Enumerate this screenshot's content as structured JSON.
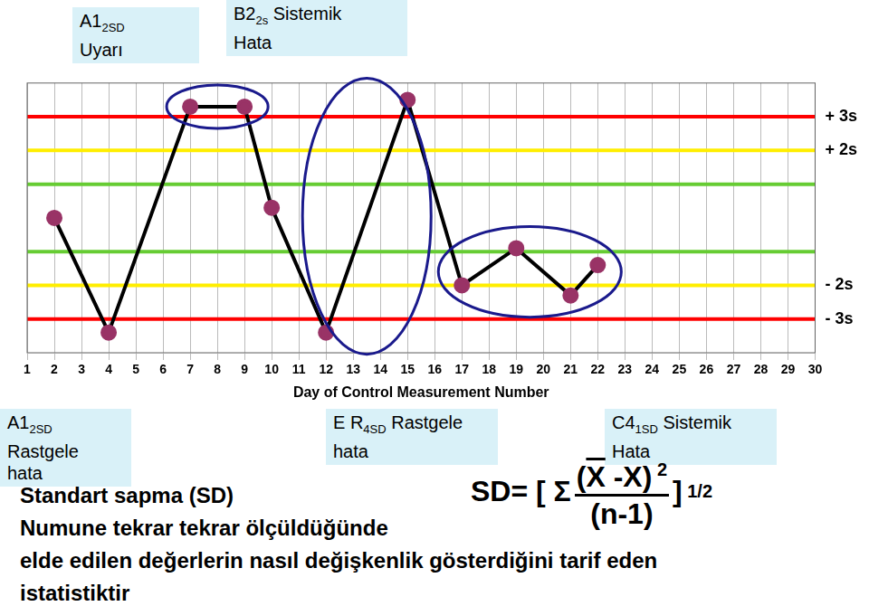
{
  "chart_data": {
    "type": "line",
    "x": [
      2,
      4,
      7,
      9,
      10,
      12,
      15,
      17,
      19,
      21,
      22
    ],
    "values": [
      0,
      -3.4,
      3.3,
      3.3,
      0.3,
      -3.4,
      3.5,
      -2.0,
      -0.9,
      -2.3,
      -1.4
    ],
    "color": "#000000",
    "marker": "circle",
    "xlim": [
      1,
      30
    ],
    "xticks": [
      1,
      2,
      3,
      4,
      5,
      6,
      7,
      8,
      9,
      10,
      11,
      12,
      13,
      14,
      15,
      16,
      17,
      18,
      19,
      20,
      21,
      22,
      23,
      24,
      25,
      26,
      27,
      28,
      29,
      30
    ],
    "xlabel": "Day of Control Measurement Number",
    "ylim": [
      -4,
      4
    ],
    "yticks": [
      {
        "value": -3,
        "label": "- 3s"
      },
      {
        "value": -2,
        "label": "- 2s"
      },
      {
        "value": 2,
        "label": "+ 2s"
      },
      {
        "value": 3,
        "label": "+ 3s"
      }
    ],
    "reference_lines": [
      {
        "value": 3,
        "color": "#ff0000"
      },
      {
        "value": 2,
        "color": "#ffee00"
      },
      {
        "value": 1,
        "color": "#66cc33"
      },
      {
        "value": -1,
        "color": "#66cc33"
      },
      {
        "value": -2,
        "color": "#ffee00"
      },
      {
        "value": -3,
        "color": "#ff0000"
      }
    ],
    "circled_points": [
      [
        2,
        3
      ],
      [
        5,
        6
      ],
      [
        7,
        8,
        9,
        10
      ]
    ],
    "grid": true
  },
  "annotations": [
    {
      "main": "A1",
      "sub": "2SD",
      "lines": [
        "Uyarı"
      ]
    },
    {
      "main": "B2",
      "sub": "2s",
      "after": "Sistemik",
      "lines": [
        "Hata"
      ]
    },
    {
      "main": "A1",
      "sub": "2SD",
      "lines": [
        "Rastgele",
        "hata"
      ]
    },
    {
      "main": "E R",
      "sub": "4SD",
      "after": "Rastgele",
      "lines": [
        "hata"
      ]
    },
    {
      "main": "C4",
      "sub": "1SD",
      "after": "Sistemik",
      "lines": [
        "Hata"
      ]
    }
  ],
  "formula": {
    "lhs": "SD=",
    "open": "[",
    "sigma": "Σ",
    "numerator_parts": [
      "(",
      "X",
      " -X)"
    ],
    "exponent": "2",
    "denominator": "(n-1)",
    "close": "]",
    "power": "1/2"
  },
  "text": [
    "Standart sapma (SD)",
    "Numune tekrar tekrar ölçüldüğünde",
    "elde edilen değerlerin nasıl değişkenlik gösterdiğini tarif eden",
    "istatistiktir"
  ]
}
